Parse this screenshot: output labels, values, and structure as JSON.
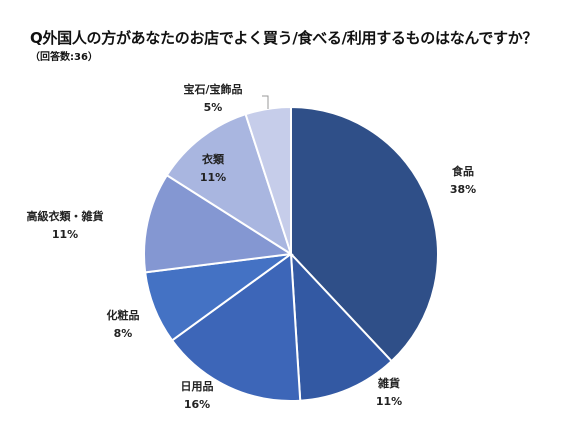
{
  "chart_data": {
    "type": "pie",
    "title": "Q外国人の方があなたのお店でよく買う/食べる/利用するものはなんですか？",
    "subtitle": "（回答数:36）",
    "start_angle_deg": 0,
    "direction": "clockwise",
    "slices": [
      {
        "label": "食品",
        "value": 38,
        "value_label": "38%",
        "color": "#2f4f88"
      },
      {
        "label": "雑貨",
        "value": 11,
        "value_label": "11%",
        "color": "#3359a3"
      },
      {
        "label": "日用品",
        "value": 16,
        "value_label": "16%",
        "color": "#3d66b8"
      },
      {
        "label": "化粧品",
        "value": 8,
        "value_label": "8%",
        "color": "#4472c4"
      },
      {
        "label": "高級衣類・雑貨",
        "value": 11,
        "value_label": "11%",
        "color": "#8497d2"
      },
      {
        "label": "衣類",
        "value": 11,
        "value_label": "11%",
        "color": "#a9b6e0"
      },
      {
        "label": "宝石/宝飾品",
        "value": 5,
        "value_label": "5%",
        "color": "#c6cdea"
      }
    ]
  }
}
